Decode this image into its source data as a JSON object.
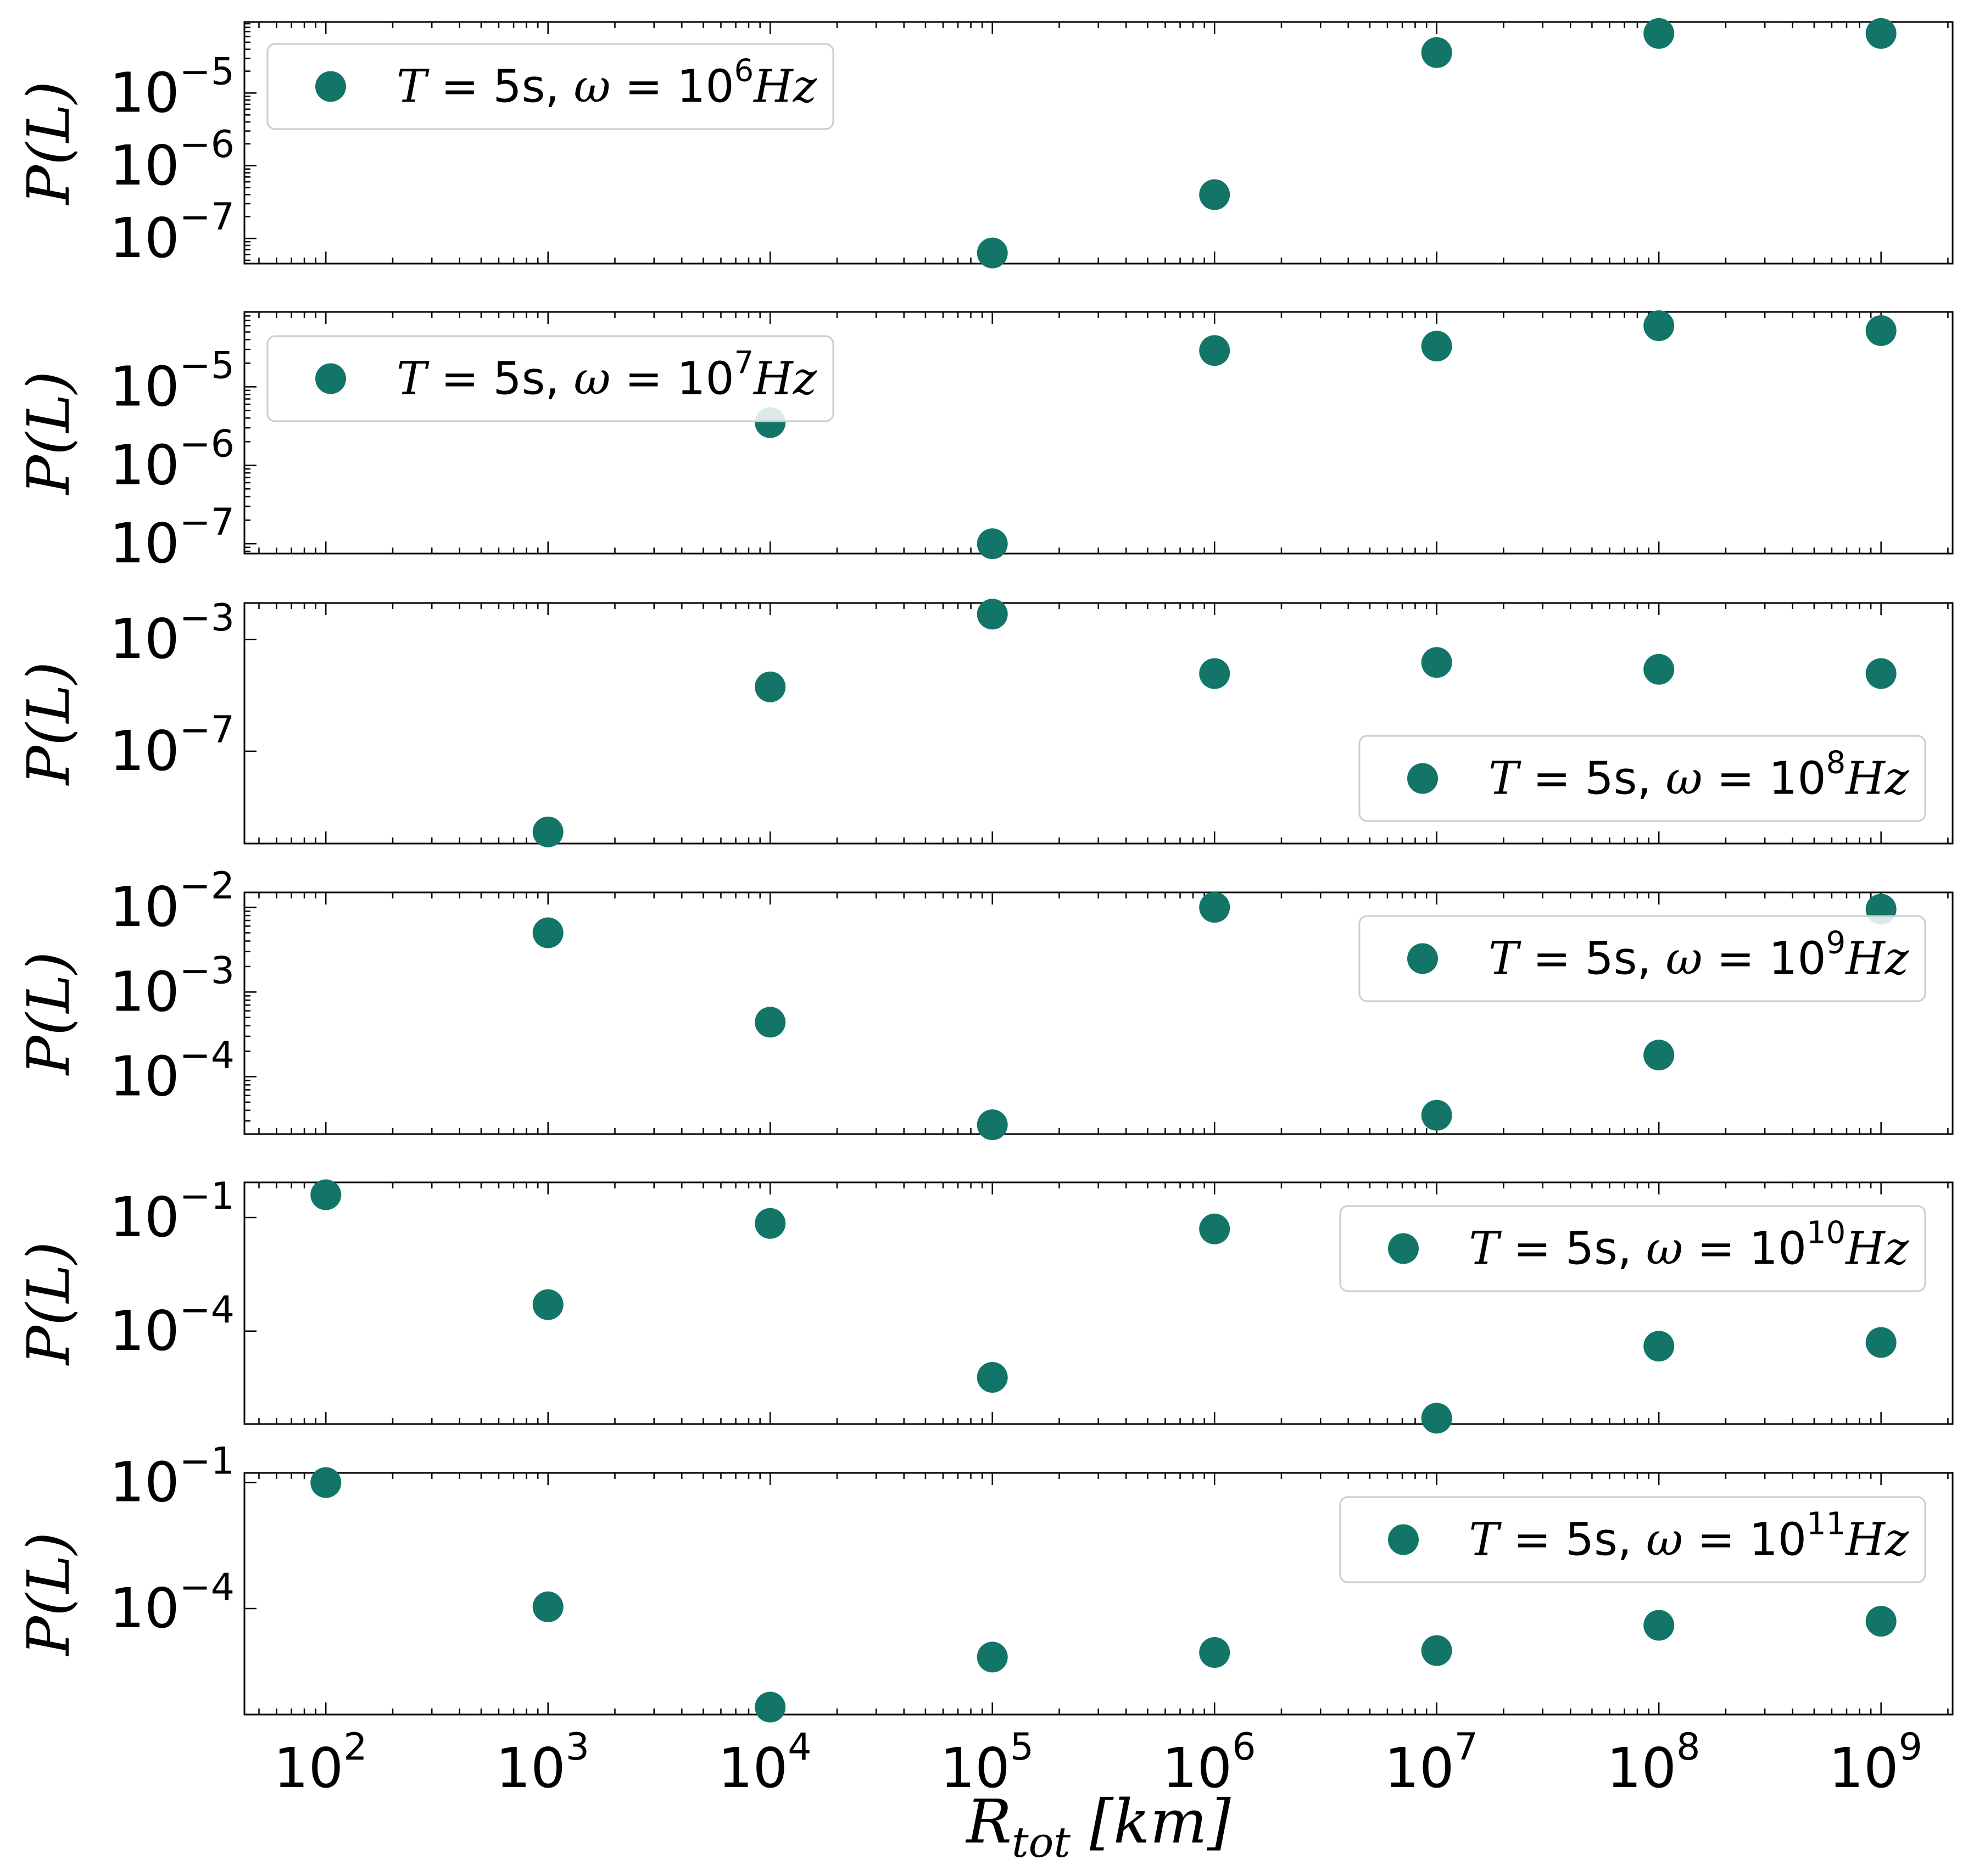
{
  "chart_data": {
    "type": "scatter",
    "marker_color": "#137568",
    "x": [
      100,
      1000,
      10000,
      100000,
      1000000,
      10000000,
      100000000,
      1000000000
    ],
    "xscale": "log",
    "xlim": [
      43,
      2100000000
    ],
    "xlabel": {
      "base": "R",
      "sub": "tot",
      "unit": "[km]"
    },
    "x_tick_labels": [
      {
        "base": "10",
        "exp": "2"
      },
      {
        "base": "10",
        "exp": "3"
      },
      {
        "base": "10",
        "exp": "4"
      },
      {
        "base": "10",
        "exp": "5"
      },
      {
        "base": "10",
        "exp": "6"
      },
      {
        "base": "10",
        "exp": "7"
      },
      {
        "base": "10",
        "exp": "8"
      },
      {
        "base": "10",
        "exp": "9"
      }
    ],
    "ylabel": "P(L)",
    "panels": [
      {
        "legend": {
          "T": "T",
          "eq1": " = 5s, ",
          "w": "ω",
          "eq2": " = 10",
          "exp": "6",
          "unit": "Hz"
        },
        "legend_loc": "upper-left",
        "ylim": [
          4.5e-08,
          9.5e-05
        ],
        "yticks": [
          1e-07,
          1e-06,
          1e-05
        ],
        "ytick_labels": [
          {
            "base": "10",
            "exp": "−7"
          },
          {
            "base": "10",
            "exp": "−6"
          },
          {
            "base": "10",
            "exp": "−5"
          }
        ],
        "points": [
          [
            100000,
            6.3e-08
          ],
          [
            1000000,
            4e-07
          ],
          [
            10000000,
            3.6e-05
          ],
          [
            100000000,
            6.6e-05
          ],
          [
            1000000000,
            6.6e-05
          ]
        ]
      },
      {
        "legend": {
          "T": "T",
          "eq1": " = 5s, ",
          "w": "ω",
          "eq2": " = 10",
          "exp": "7",
          "unit": "Hz"
        },
        "legend_loc": "upper-left",
        "ylim": [
          7.5e-08,
          9e-05
        ],
        "yticks": [
          1e-07,
          1e-06,
          1e-05
        ],
        "ytick_labels": [
          {
            "base": "10",
            "exp": "−7"
          },
          {
            "base": "10",
            "exp": "−6"
          },
          {
            "base": "10",
            "exp": "−5"
          }
        ],
        "points": [
          [
            10000,
            3.5e-06
          ],
          [
            100000,
            1e-07
          ],
          [
            1000000,
            2.9e-05
          ],
          [
            10000000,
            3.3e-05
          ],
          [
            100000000,
            6e-05
          ],
          [
            1000000000,
            5.2e-05
          ]
        ]
      },
      {
        "legend": {
          "T": "T",
          "eq1": " = 5s, ",
          "w": "ω",
          "eq2": " = 10",
          "exp": "8",
          "unit": "Hz"
        },
        "legend_loc": "lower-right",
        "ylim": [
          5e-11,
          0.02
        ],
        "yticks": [
          1e-07,
          0.001
        ],
        "ytick_labels": [
          {
            "base": "10",
            "exp": "−7"
          },
          {
            "base": "10",
            "exp": "−3"
          }
        ],
        "points": [
          [
            1000,
            1.3e-10
          ],
          [
            10000,
            2e-05
          ],
          [
            100000,
            0.008
          ],
          [
            1000000,
            6e-05
          ],
          [
            10000000,
            0.00015
          ],
          [
            100000000,
            8.5e-05
          ],
          [
            1000000000,
            6e-05
          ]
        ]
      },
      {
        "legend": {
          "T": "T",
          "eq1": " = 5s, ",
          "w": "ω",
          "eq2": " = 10",
          "exp": "9",
          "unit": "Hz"
        },
        "legend_loc": "upper-right",
        "ylim": [
          2.1e-05,
          0.015
        ],
        "yticks": [
          0.0001,
          0.001,
          0.01
        ],
        "ytick_labels": [
          {
            "base": "10",
            "exp": "−4"
          },
          {
            "base": "10",
            "exp": "−3"
          },
          {
            "base": "10",
            "exp": "−2"
          }
        ],
        "points": [
          [
            1000,
            0.005
          ],
          [
            10000,
            0.00044
          ],
          [
            100000,
            2.7e-05
          ],
          [
            1000000,
            0.01
          ],
          [
            10000000,
            3.5e-05
          ],
          [
            100000000,
            0.00018
          ],
          [
            1000000000,
            0.0095
          ]
        ]
      },
      {
        "legend": {
          "T": "T",
          "eq1": " = 5s, ",
          "w": "ω",
          "eq2": " = 10",
          "exp": "10",
          "unit": "Hz"
        },
        "legend_loc": "upper-right",
        "ylim": [
          3.5e-07,
          0.85
        ],
        "yticks": [
          0.0001,
          0.1
        ],
        "ytick_labels": [
          {
            "base": "10",
            "exp": "−4"
          },
          {
            "base": "10",
            "exp": "−1"
          }
        ],
        "points": [
          [
            100,
            0.4
          ],
          [
            1000,
            0.0005
          ],
          [
            10000,
            0.07
          ],
          [
            100000,
            6e-06
          ],
          [
            1000000,
            0.05
          ],
          [
            10000000,
            5e-07
          ],
          [
            100000000,
            4e-05
          ],
          [
            1000000000,
            5e-05
          ]
        ]
      },
      {
        "legend": {
          "T": "T",
          "eq1": " = 5s, ",
          "w": "ω",
          "eq2": " = 10",
          "exp": "11",
          "unit": "Hz"
        },
        "legend_loc": "upper-right",
        "ylim": [
          3e-07,
          0.17
        ],
        "yticks": [
          0.0001,
          0.1
        ],
        "ytick_labels": [
          {
            "base": "10",
            "exp": "−4"
          },
          {
            "base": "10",
            "exp": "−1"
          }
        ],
        "points": [
          [
            100,
            0.1
          ],
          [
            1000,
            0.00011
          ],
          [
            10000,
            4.5e-07
          ],
          [
            100000,
            7e-06
          ],
          [
            1000000,
            9e-06
          ],
          [
            10000000,
            1e-05
          ],
          [
            100000000,
            4e-05
          ],
          [
            1000000000,
            5e-05
          ]
        ]
      }
    ]
  }
}
